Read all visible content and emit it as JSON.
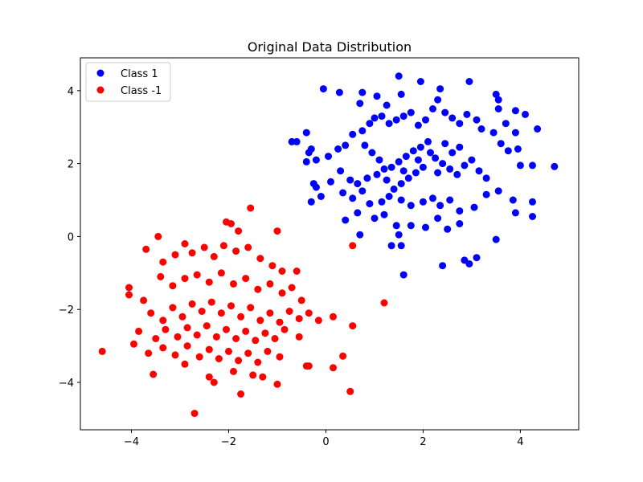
{
  "chart_data": {
    "type": "scatter",
    "title": "Original Data Distribution",
    "xlabel": "",
    "ylabel": "",
    "xlim": [
      -5.05,
      5.2
    ],
    "ylim": [
      -5.3,
      4.9
    ],
    "xticks": [
      -4,
      -2,
      0,
      2,
      4
    ],
    "yticks": [
      -4,
      -2,
      0,
      2,
      4
    ],
    "grid": false,
    "legend_position": "top-left",
    "series": [
      {
        "name": "Class 1",
        "color": "#0000ff",
        "points": [
          [
            -0.05,
            4.05
          ],
          [
            0.28,
            3.95
          ],
          [
            0.7,
            3.65
          ],
          [
            0.75,
            3.95
          ],
          [
            1.05,
            3.85
          ],
          [
            1.25,
            3.6
          ],
          [
            1.5,
            4.4
          ],
          [
            1.55,
            3.9
          ],
          [
            1.95,
            4.25
          ],
          [
            2.3,
            3.75
          ],
          [
            2.35,
            4.05
          ],
          [
            2.95,
            4.25
          ],
          [
            3.5,
            3.9
          ],
          [
            3.55,
            3.75
          ],
          [
            3.55,
            3.5
          ],
          [
            3.9,
            3.45
          ],
          [
            4.1,
            3.35
          ],
          [
            -0.4,
            2.85
          ],
          [
            -0.6,
            2.6
          ],
          [
            -0.7,
            2.6
          ],
          [
            -0.3,
            2.4
          ],
          [
            -0.35,
            2.3
          ],
          [
            -0.4,
            2.05
          ],
          [
            -0.2,
            2.1
          ],
          [
            0.05,
            2.2
          ],
          [
            0.25,
            2.4
          ],
          [
            0.4,
            2.5
          ],
          [
            0.55,
            2.8
          ],
          [
            0.75,
            2.9
          ],
          [
            0.9,
            3.1
          ],
          [
            1.0,
            3.25
          ],
          [
            1.15,
            3.3
          ],
          [
            1.3,
            3.1
          ],
          [
            1.45,
            3.2
          ],
          [
            1.6,
            3.3
          ],
          [
            1.75,
            3.4
          ],
          [
            1.9,
            3.05
          ],
          [
            2.05,
            3.2
          ],
          [
            2.2,
            3.5
          ],
          [
            2.45,
            3.4
          ],
          [
            2.6,
            3.25
          ],
          [
            2.75,
            3.1
          ],
          [
            2.9,
            3.35
          ],
          [
            3.1,
            3.2
          ],
          [
            3.2,
            2.95
          ],
          [
            3.45,
            2.85
          ],
          [
            3.7,
            3.1
          ],
          [
            3.9,
            2.85
          ],
          [
            4.35,
            2.95
          ],
          [
            3.6,
            2.55
          ],
          [
            3.75,
            2.35
          ],
          [
            3.95,
            2.4
          ],
          [
            -0.25,
            1.45
          ],
          [
            -0.2,
            1.35
          ],
          [
            0.1,
            1.5
          ],
          [
            0.3,
            1.8
          ],
          [
            0.5,
            1.55
          ],
          [
            0.65,
            1.45
          ],
          [
            0.85,
            1.6
          ],
          [
            1.05,
            1.7
          ],
          [
            1.2,
            1.85
          ],
          [
            1.35,
            1.9
          ],
          [
            1.5,
            2.05
          ],
          [
            1.65,
            2.2
          ],
          [
            1.8,
            2.35
          ],
          [
            1.95,
            2.45
          ],
          [
            2.1,
            2.6
          ],
          [
            2.25,
            2.15
          ],
          [
            2.4,
            2.0
          ],
          [
            2.55,
            1.85
          ],
          [
            2.7,
            1.7
          ],
          [
            2.85,
            1.95
          ],
          [
            3.0,
            2.1
          ],
          [
            3.15,
            1.8
          ],
          [
            3.3,
            1.6
          ],
          [
            2.0,
            1.9
          ],
          [
            1.85,
            1.75
          ],
          [
            1.7,
            1.6
          ],
          [
            1.55,
            1.45
          ],
          [
            1.4,
            1.3
          ],
          [
            1.25,
            1.55
          ],
          [
            1.1,
            2.1
          ],
          [
            0.95,
            2.3
          ],
          [
            0.8,
            2.5
          ],
          [
            2.6,
            2.3
          ],
          [
            2.75,
            2.45
          ],
          [
            2.45,
            2.55
          ],
          [
            2.15,
            2.3
          ],
          [
            1.6,
            1.8
          ],
          [
            1.9,
            2.1
          ],
          [
            2.3,
            1.75
          ],
          [
            -0.3,
            0.95
          ],
          [
            -0.1,
            1.1
          ],
          [
            0.35,
            1.2
          ],
          [
            0.55,
            1.05
          ],
          [
            0.75,
            1.25
          ],
          [
            0.9,
            0.9
          ],
          [
            1.15,
            0.95
          ],
          [
            1.3,
            1.1
          ],
          [
            1.55,
            1.0
          ],
          [
            1.75,
            0.85
          ],
          [
            2.0,
            0.95
          ],
          [
            2.2,
            1.05
          ],
          [
            2.35,
            0.85
          ],
          [
            2.55,
            1.0
          ],
          [
            2.75,
            0.7
          ],
          [
            3.05,
            0.8
          ],
          [
            3.3,
            1.15
          ],
          [
            3.55,
            1.25
          ],
          [
            3.85,
            1.0
          ],
          [
            3.9,
            0.65
          ],
          [
            4.25,
            0.95
          ],
          [
            4.25,
            0.55
          ],
          [
            4.0,
            1.95
          ],
          [
            4.25,
            1.95
          ],
          [
            4.7,
            1.92
          ],
          [
            0.4,
            0.45
          ],
          [
            0.65,
            0.65
          ],
          [
            1.0,
            0.5
          ],
          [
            1.2,
            0.6
          ],
          [
            1.45,
            0.3
          ],
          [
            1.5,
            0.05
          ],
          [
            1.75,
            0.3
          ],
          [
            2.05,
            0.25
          ],
          [
            2.3,
            0.5
          ],
          [
            2.5,
            0.2
          ],
          [
            2.75,
            0.35
          ],
          [
            0.7,
            0.05
          ],
          [
            1.35,
            -0.25
          ],
          [
            1.55,
            -0.25
          ],
          [
            2.4,
            -0.8
          ],
          [
            2.85,
            -0.65
          ],
          [
            2.95,
            -0.75
          ],
          [
            3.1,
            -0.58
          ],
          [
            3.5,
            -0.08
          ],
          [
            1.6,
            -1.05
          ]
        ]
      },
      {
        "name": "Class -1",
        "color": "#ff0000",
        "points": [
          [
            -2.05,
            0.4
          ],
          [
            -1.95,
            0.35
          ],
          [
            -1.8,
            0.15
          ],
          [
            -1.55,
            0.78
          ],
          [
            -1.0,
            0.15
          ],
          [
            -3.45,
            0.0
          ],
          [
            -3.7,
            -0.35
          ],
          [
            -3.35,
            -0.7
          ],
          [
            -3.1,
            -0.5
          ],
          [
            -2.9,
            -0.2
          ],
          [
            -2.75,
            -0.45
          ],
          [
            -2.5,
            -0.3
          ],
          [
            -2.3,
            -0.55
          ],
          [
            -2.1,
            -0.25
          ],
          [
            -1.85,
            -0.4
          ],
          [
            -1.6,
            -0.3
          ],
          [
            -1.35,
            -0.6
          ],
          [
            -1.1,
            -0.8
          ],
          [
            -0.9,
            -0.95
          ],
          [
            -0.6,
            -0.95
          ],
          [
            -4.05,
            -1.4
          ],
          [
            -4.05,
            -1.6
          ],
          [
            -3.75,
            -1.75
          ],
          [
            -3.4,
            -1.1
          ],
          [
            -3.15,
            -1.35
          ],
          [
            -2.9,
            -1.15
          ],
          [
            -2.65,
            -1.05
          ],
          [
            -2.4,
            -1.25
          ],
          [
            -2.15,
            -1.0
          ],
          [
            -1.9,
            -1.3
          ],
          [
            -1.65,
            -1.15
          ],
          [
            -1.4,
            -1.45
          ],
          [
            -1.15,
            -1.3
          ],
          [
            -0.9,
            -1.55
          ],
          [
            -0.7,
            -1.4
          ],
          [
            -0.5,
            -1.75
          ],
          [
            -3.6,
            -2.1
          ],
          [
            -3.35,
            -2.3
          ],
          [
            -3.15,
            -1.95
          ],
          [
            -2.95,
            -2.2
          ],
          [
            -2.75,
            -1.85
          ],
          [
            -2.55,
            -2.05
          ],
          [
            -2.35,
            -1.8
          ],
          [
            -2.15,
            -2.1
          ],
          [
            -1.95,
            -1.9
          ],
          [
            -1.75,
            -2.2
          ],
          [
            -1.55,
            -1.95
          ],
          [
            -1.35,
            -2.3
          ],
          [
            -1.15,
            -2.1
          ],
          [
            -0.95,
            -2.35
          ],
          [
            -0.75,
            -2.05
          ],
          [
            -0.55,
            -2.25
          ],
          [
            -0.35,
            -2.1
          ],
          [
            -0.15,
            -2.3
          ],
          [
            0.15,
            -2.2
          ],
          [
            -3.85,
            -2.6
          ],
          [
            -3.5,
            -2.8
          ],
          [
            -3.3,
            -2.55
          ],
          [
            -3.05,
            -2.75
          ],
          [
            -2.85,
            -2.5
          ],
          [
            -2.65,
            -2.7
          ],
          [
            -2.45,
            -2.45
          ],
          [
            -2.25,
            -2.75
          ],
          [
            -2.05,
            -2.55
          ],
          [
            -1.85,
            -2.8
          ],
          [
            -1.65,
            -2.6
          ],
          [
            -1.45,
            -2.85
          ],
          [
            -1.25,
            -2.65
          ],
          [
            -1.05,
            -2.8
          ],
          [
            -0.85,
            -2.55
          ],
          [
            -0.55,
            -2.75
          ],
          [
            0.55,
            -2.45
          ],
          [
            -4.6,
            -3.15
          ],
          [
            -3.95,
            -2.95
          ],
          [
            -3.65,
            -3.2
          ],
          [
            -3.35,
            -3.05
          ],
          [
            -3.1,
            -3.25
          ],
          [
            -2.85,
            -3.0
          ],
          [
            -2.6,
            -3.3
          ],
          [
            -2.4,
            -3.1
          ],
          [
            -2.2,
            -3.35
          ],
          [
            -2.0,
            -3.15
          ],
          [
            -1.8,
            -3.4
          ],
          [
            -1.6,
            -3.2
          ],
          [
            -1.4,
            -3.45
          ],
          [
            -1.2,
            -3.15
          ],
          [
            -0.95,
            -3.3
          ],
          [
            -0.4,
            -3.55
          ],
          [
            0.15,
            -3.6
          ],
          [
            0.35,
            -3.28
          ],
          [
            -3.55,
            -3.78
          ],
          [
            -2.9,
            -3.5
          ],
          [
            -2.4,
            -3.85
          ],
          [
            -2.3,
            -4.0
          ],
          [
            -1.9,
            -3.7
          ],
          [
            -1.75,
            -4.32
          ],
          [
            -1.5,
            -3.8
          ],
          [
            -1.3,
            -3.85
          ],
          [
            -1.0,
            -4.05
          ],
          [
            -0.35,
            -3.55
          ],
          [
            0.5,
            -4.25
          ],
          [
            -2.7,
            -4.85
          ],
          [
            0.55,
            -0.25
          ],
          [
            1.2,
            -1.82
          ]
        ]
      }
    ]
  }
}
